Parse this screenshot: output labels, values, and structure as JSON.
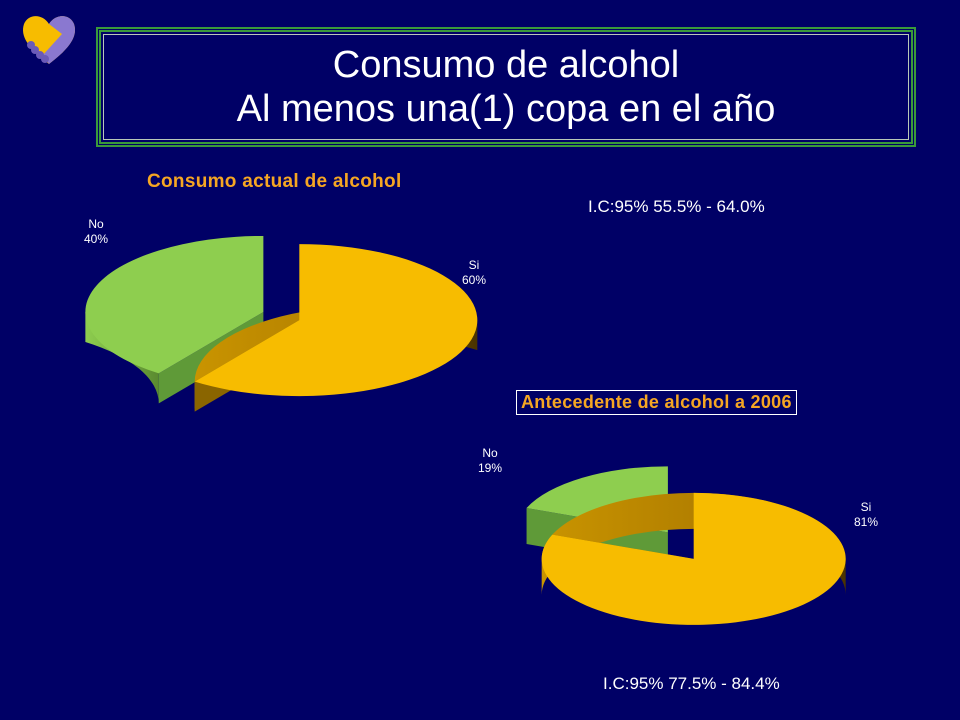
{
  "title": {
    "line1": "Consumo de alcohol",
    "line2": "Al menos una(1) copa en el año"
  },
  "colors": {
    "background": "#000066",
    "si": "#f7bc00",
    "no": "#8ece4f",
    "chart_title": "#f5a623"
  },
  "logo": {
    "icon": "heart-handshake-icon"
  },
  "chart_data": [
    {
      "type": "pie",
      "title": "Consumo actual de alcohol",
      "categories": [
        "Si",
        "No"
      ],
      "values": [
        60,
        40
      ],
      "labels": [
        "60%",
        "40%"
      ],
      "exploded": true,
      "style": "3d",
      "confidence_interval": "I.C:95% 55.5% - 64.0%"
    },
    {
      "type": "pie",
      "title": "Antecedente de alcohol a 2006",
      "categories": [
        "Si",
        "No"
      ],
      "values": [
        81,
        19
      ],
      "labels": [
        "81%",
        "19%"
      ],
      "exploded": true,
      "style": "3d",
      "confidence_interval": "I.C:95% 77.5% - 84.4%"
    }
  ]
}
